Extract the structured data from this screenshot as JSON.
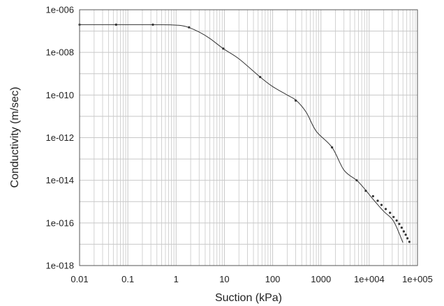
{
  "chart_data": {
    "type": "line",
    "title": "",
    "xlabel": "Suction (kPa)",
    "ylabel": "Conductivity (m/sec)",
    "x_scale": "log",
    "y_scale": "log",
    "xlim": [
      0.01,
      100000
    ],
    "ylim": [
      1e-18,
      1e-06
    ],
    "grid": true,
    "legend": "none",
    "line_color": "#333333",
    "grid_color": "#c8c8c8",
    "x_ticks": [
      {
        "value": 0.01,
        "label": "0.01"
      },
      {
        "value": 0.1,
        "label": "0.1"
      },
      {
        "value": 1,
        "label": "1"
      },
      {
        "value": 10,
        "label": "10"
      },
      {
        "value": 100,
        "label": "100"
      },
      {
        "value": 1000,
        "label": "1000"
      },
      {
        "value": 10000,
        "label": "1e+004"
      },
      {
        "value": 100000,
        "label": "1e+005"
      }
    ],
    "y_ticks": [
      {
        "value": 1e-18,
        "label": "1e-018"
      },
      {
        "value": 1e-16,
        "label": "1e-016"
      },
      {
        "value": 1e-14,
        "label": "1e-014"
      },
      {
        "value": 1e-12,
        "label": "1e-012"
      },
      {
        "value": 1e-10,
        "label": "1e-010"
      },
      {
        "value": 1e-08,
        "label": "1e-008"
      },
      {
        "value": 1e-06,
        "label": "1e-006"
      }
    ],
    "curve": [
      [
        0.01,
        2e-07
      ],
      [
        0.3,
        2e-07
      ],
      [
        0.8,
        1.95e-07
      ],
      [
        1.3,
        1.8e-07
      ],
      [
        1.8,
        1.5e-07
      ],
      [
        3,
        9e-08
      ],
      [
        5,
        4.5e-08
      ],
      [
        9.5,
        1.5e-08
      ],
      [
        20,
        5e-09
      ],
      [
        55,
        7e-10
      ],
      [
        100,
        2.5e-10
      ],
      [
        200,
        1e-10
      ],
      [
        310,
        5.5e-11
      ],
      [
        500,
        1.5e-11
      ],
      [
        800,
        2e-12
      ],
      [
        1700,
        3.5e-13
      ],
      [
        3000,
        3e-14
      ],
      [
        5500,
        1e-14
      ],
      [
        8000,
        4e-15
      ],
      [
        12000,
        1.3e-15
      ],
      [
        20000,
        3.5e-16
      ],
      [
        32000,
        1.2e-16
      ],
      [
        50000,
        1.2e-17
      ]
    ],
    "markers": [
      [
        0.01,
        2e-07
      ],
      [
        0.057,
        2e-07
      ],
      [
        0.33,
        2e-07
      ],
      [
        1.85,
        1.5e-07
      ],
      [
        9.5,
        1.5e-08
      ],
      [
        55,
        7e-10
      ],
      [
        300,
        5.5e-11
      ],
      [
        1700,
        3.5e-13
      ],
      [
        5500,
        1e-14
      ],
      [
        8500,
        3.2e-15
      ],
      [
        12000,
        1.8e-15
      ],
      [
        15000,
        1.1e-15
      ],
      [
        18000,
        7e-16
      ],
      [
        22000,
        4.5e-16
      ],
      [
        27000,
        3e-16
      ],
      [
        32000,
        1.9e-16
      ],
      [
        37000,
        1.3e-16
      ],
      [
        42000,
        9e-17
      ],
      [
        47000,
        6e-17
      ],
      [
        52000,
        4e-17
      ],
      [
        57000,
        2.8e-17
      ],
      [
        62000,
        1.9e-17
      ],
      [
        68000,
        1.3e-17
      ]
    ]
  }
}
